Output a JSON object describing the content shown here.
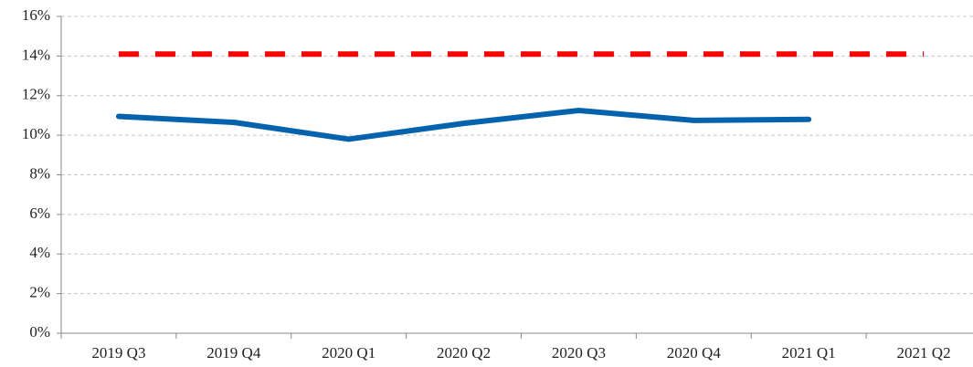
{
  "chart_data": {
    "type": "line",
    "categories": [
      "2019 Q3",
      "2019 Q4",
      "2020 Q1",
      "2020 Q2",
      "2020 Q3",
      "2020 Q4",
      "2021 Q1",
      "2021 Q2"
    ],
    "series": [
      {
        "color": "#0563ae",
        "values": [
          10.95,
          10.65,
          9.8,
          10.6,
          11.25,
          10.75,
          10.8,
          null
        ]
      },
      {
        "color": "#ff0000",
        "dashed": true,
        "values": [
          14.1,
          14.1,
          14.1,
          14.1,
          14.1,
          14.1,
          14.1,
          14.1
        ]
      }
    ],
    "ylim": [
      0,
      16
    ],
    "yticks": [
      {
        "value": 0,
        "label": "0%"
      },
      {
        "value": 2,
        "label": "2%"
      },
      {
        "value": 4,
        "label": "4%"
      },
      {
        "value": 6,
        "label": "6%"
      },
      {
        "value": 8,
        "label": "8%"
      },
      {
        "value": 10,
        "label": "10%"
      },
      {
        "value": 12,
        "label": "12%"
      },
      {
        "value": 14,
        "label": "14%"
      },
      {
        "value": 16,
        "label": "16%"
      }
    ],
    "grid": true
  }
}
